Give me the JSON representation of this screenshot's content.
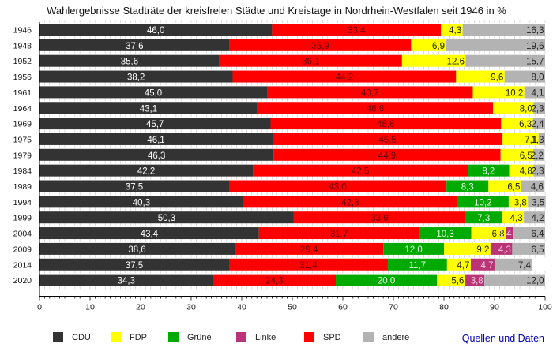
{
  "chart_data": {
    "type": "bar",
    "orientation": "horizontal",
    "stacked": true,
    "title": "Wahlergebnisse Stadträte der kreisfreien Städte und Kreistage in Nordrhein-Westfalen seit 1946 in %",
    "xlabel": "",
    "ylabel": "",
    "xlim": [
      0,
      100
    ],
    "xticks": [
      0,
      10,
      20,
      30,
      40,
      50,
      60,
      70,
      80,
      90,
      100
    ],
    "grid": false,
    "legend_position": "bottom",
    "categories": [
      "1946",
      "1948",
      "1952",
      "1956",
      "1961",
      "1964",
      "1969",
      "1975",
      "1979",
      "1984",
      "1989",
      "1994",
      "1999",
      "2004",
      "2009",
      "2014",
      "2020"
    ],
    "series": [
      {
        "name": "CDU",
        "color": "#333333",
        "label_color": "#ffffff",
        "values": [
          46.0,
          37.6,
          35.6,
          38.2,
          45.0,
          43.1,
          45.7,
          46.1,
          46.3,
          42.2,
          37.5,
          40.3,
          50.3,
          43.4,
          38.6,
          37.5,
          34.3
        ]
      },
      {
        "name": "SPD",
        "color": "#ff0000",
        "label_color": "#6b0000",
        "values": [
          33.4,
          35.9,
          36.1,
          44.2,
          40.7,
          46.6,
          45.6,
          45.5,
          44.9,
          42.5,
          43.0,
          42.3,
          33.9,
          31.7,
          29.4,
          31.4,
          24.3
        ]
      },
      {
        "name": "Grüne",
        "color": "#00aa00",
        "label_color": "#e8ffe8",
        "values": [
          null,
          null,
          null,
          null,
          null,
          null,
          null,
          null,
          null,
          8.2,
          8.3,
          10.2,
          7.3,
          10.3,
          12.0,
          11.7,
          20.0
        ]
      },
      {
        "name": "FDP",
        "color": "#ffff00",
        "label_color": "#222222",
        "values": [
          4.3,
          6.9,
          12.6,
          9.6,
          10.2,
          8.0,
          6.3,
          7.1,
          6.5,
          4.8,
          6.5,
          3.8,
          4.3,
          6.8,
          9.2,
          4.7,
          5.6
        ]
      },
      {
        "name": "Linke",
        "color": "#bb3377",
        "label_color": "#f0d0e0",
        "values": [
          null,
          null,
          null,
          null,
          null,
          null,
          null,
          null,
          null,
          null,
          null,
          null,
          null,
          1.4,
          4.3,
          4.7,
          3.8
        ]
      },
      {
        "name": "andere",
        "color": "#b3b3b3",
        "label_color": "#222222",
        "values": [
          16.3,
          19.6,
          15.7,
          8.0,
          4.1,
          2.3,
          2.4,
          1.3,
          2.2,
          2.3,
          4.6,
          3.5,
          4.2,
          6.4,
          6.5,
          7.4,
          12.0
        ]
      }
    ],
    "legend_order": [
      "CDU",
      "FDP",
      "Grüne",
      "Linke",
      "SPD",
      "andere"
    ]
  },
  "links": {
    "sources": "Quellen und Daten"
  }
}
